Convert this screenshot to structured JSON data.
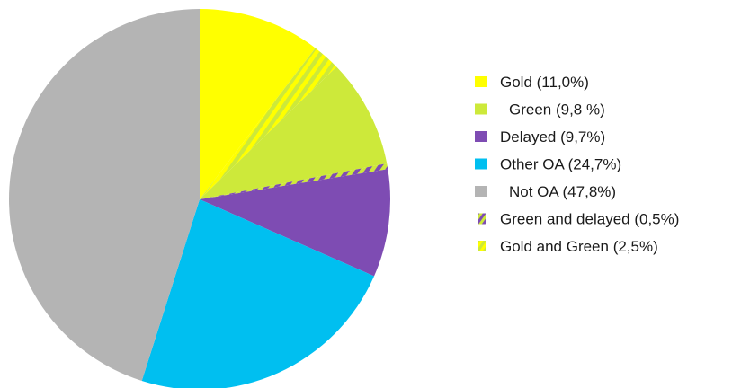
{
  "chart_data": {
    "type": "pie",
    "slices": [
      {
        "label": "Gold (11,0%)",
        "value": 11.0,
        "color": "#ffff00",
        "pattern": "none"
      },
      {
        "label": "Gold and Green (2,5%)",
        "value": 2.5,
        "color": "#ffff00",
        "pattern": "stripe",
        "stripe_color": "#cde93a"
      },
      {
        "label": "Green (9,8 %)",
        "value": 9.8,
        "color": "#cde93a",
        "pattern": "none"
      },
      {
        "label": "Green and delayed (0,5%)",
        "value": 0.5,
        "color": "#cde93a",
        "pattern": "stripe",
        "stripe_color": "#7e4cb3"
      },
      {
        "label": "Delayed (9,7%)",
        "value": 9.7,
        "color": "#7e4cb3",
        "pattern": "none"
      },
      {
        "label": "Other OA (24,7%)",
        "value": 24.7,
        "color": "#00bff0",
        "pattern": "none"
      },
      {
        "label": "Not OA (47,8%)",
        "value": 47.8,
        "color": "#b4b4b4",
        "pattern": "none"
      }
    ],
    "legend": {
      "placement": "right",
      "entries": [
        {
          "label": "Gold (11,0%)",
          "color": "#ffff00",
          "pattern": "none"
        },
        {
          "label": "Green (9,8 %)",
          "color": "#cde93a",
          "pattern": "none"
        },
        {
          "label": "Delayed (9,7%)",
          "color": "#7e4cb3",
          "pattern": "none"
        },
        {
          "label": "Other OA (24,7%)",
          "color": "#00bff0",
          "pattern": "none"
        },
        {
          "label": "Not OA (47,8%)",
          "color": "#b4b4b4",
          "pattern": "none"
        },
        {
          "label": "Green and delayed (0,5%)",
          "color": "#cde93a",
          "pattern": "stripe",
          "stripe_color": "#7e4cb3"
        },
        {
          "label": "Gold and Green (2,5%)",
          "color": "#ffff00",
          "pattern": "stripe",
          "stripe_color": "#cde93a"
        }
      ]
    },
    "start_angle_deg": 0,
    "direction": "clockwise"
  }
}
